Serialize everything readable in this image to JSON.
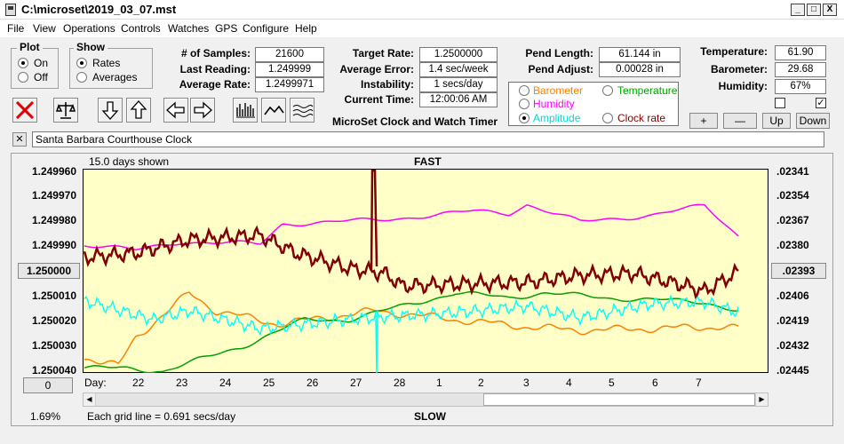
{
  "window": {
    "title": "C:\\microset\\2019_03_07.mst",
    "min": "_",
    "max": "□",
    "close": "X"
  },
  "menu": [
    "File",
    "View",
    "Operations",
    "Controls",
    "Watches",
    "GPS",
    "Configure",
    "Help"
  ],
  "plot": {
    "title": "Plot",
    "on": "On",
    "off": "Off"
  },
  "show": {
    "title": "Show",
    "rates": "Rates",
    "averages": "Averages"
  },
  "stats": {
    "samples_label": "# of Samples:",
    "samples": "21600",
    "last_label": "Last Reading:",
    "last": "1.249999",
    "avg_rate_label": "Average Rate:",
    "avg_rate": "1.2499971"
  },
  "target": {
    "rate_label": "Target Rate:",
    "rate": "1.2500000",
    "err_label": "Average Error:",
    "err": "1.4 sec/week",
    "inst_label": "Instability:",
    "inst": "1 secs/day",
    "time_label": "Current Time:",
    "time": "12:00:06 AM",
    "app_name": "MicroSet Clock and Watch Timer"
  },
  "pend": {
    "len_label": "Pend Length:",
    "len": "61.144 in",
    "adj_label": "Pend Adjust:",
    "adj": "0.00028 in"
  },
  "sensors": {
    "barometer": "Barometer",
    "temperature": "Temperature",
    "humidity": "Humidity",
    "amplitude": "Amplitude",
    "clock_rate": "Clock rate"
  },
  "env": {
    "temp_label": "Temperature:",
    "temp": "61.90",
    "baro_label": "Barometer:",
    "baro": "29.68",
    "hum_label": "Humidity:",
    "hum": "67%"
  },
  "env_buttons": {
    "plus": "+",
    "minus": "—",
    "up": "Up",
    "down": "Down"
  },
  "description": {
    "close": "✕",
    "text": "Santa Barbara Courthouse Clock"
  },
  "graph": {
    "days_shown": "15.0 days shown",
    "top": "FAST",
    "bottom": "SLOW",
    "grid_note": "Each grid line = 0.691 secs/day",
    "percent": "1.69%",
    "day_label": "Day:",
    "left_ticks": [
      "1.249960",
      "1.249970",
      "1.249980",
      "1.249990",
      "1.250000",
      "1.250010",
      "1.250020",
      "1.250030",
      "1.250040"
    ],
    "right_ticks": [
      ".02341",
      ".02354",
      ".02367",
      ".02380",
      ".02393",
      ".02406",
      ".02419",
      ".02432",
      ".02445"
    ],
    "zero": "0",
    "days": [
      "22",
      "23",
      "24",
      "25",
      "26",
      "27",
      "28",
      "1",
      "2",
      "3",
      "4",
      "5",
      "6",
      "7"
    ]
  },
  "colors": {
    "plot_bg": "#ffffc8",
    "rate": "#800000",
    "barometer": "#ff8000",
    "humidity": "#ff00ff",
    "amplitude": "#00ffff",
    "temperature": "#00a000"
  },
  "icons": {
    "stop": "red-x-icon",
    "scale": "balance-icon",
    "down": "arrow-down-icon",
    "up": "arrow-up-icon",
    "left": "arrow-left-icon",
    "right": "arrow-right-icon",
    "bars": "bar-plot-icon",
    "line": "line-plot-icon",
    "smooth": "smooth-plot-icon"
  }
}
